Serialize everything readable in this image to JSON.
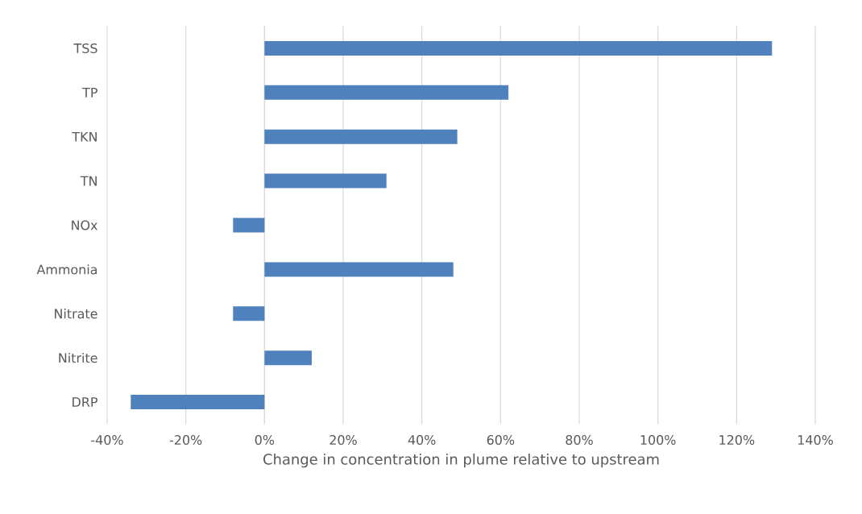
{
  "chart_data": {
    "type": "bar",
    "orientation": "horizontal",
    "xlabel": "Change in concentration in plume relative to upstream",
    "categories": [
      "TSS",
      "TP",
      "TKN",
      "TN",
      "NOx",
      "Ammonia",
      "Nitrate",
      "Nitrite",
      "DRP"
    ],
    "values": [
      129,
      62,
      49,
      31,
      -8,
      48,
      -8,
      12,
      -34
    ],
    "color": "#4f81bd",
    "xlim": [
      -40,
      140
    ],
    "xticks": [
      {
        "value": -40,
        "label": "-40%"
      },
      {
        "value": -20,
        "label": "-20%"
      },
      {
        "value": 0,
        "label": "0%"
      },
      {
        "value": 20,
        "label": "20%"
      },
      {
        "value": 40,
        "label": "40%"
      },
      {
        "value": 60,
        "label": "60%"
      },
      {
        "value": 80,
        "label": "80%"
      },
      {
        "value": 100,
        "label": "100%"
      },
      {
        "value": 120,
        "label": "120%"
      },
      {
        "value": 140,
        "label": "140%"
      }
    ],
    "grid": "x"
  }
}
